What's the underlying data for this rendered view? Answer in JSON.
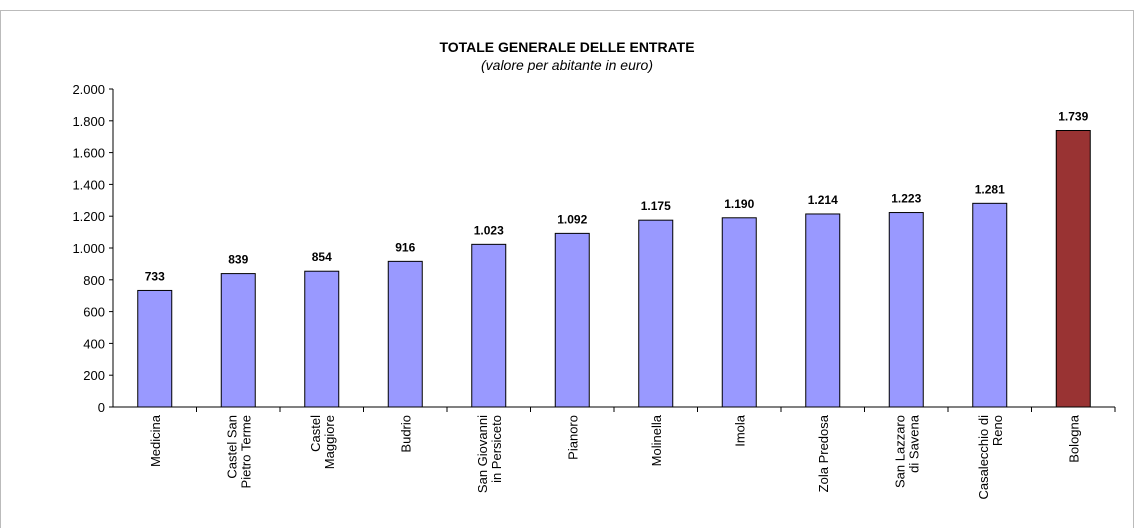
{
  "chart_data": {
    "type": "bar",
    "title": "TOTALE GENERALE DELLE ENTRATE",
    "subtitle": "(valore per abitante in  euro)",
    "categories": [
      "Medicina",
      "Castel San\nPietro Terme",
      "Castel\nMaggiore",
      "Budrio",
      "San Giovanni\nin Persiceto",
      "Pianoro",
      "Molinella",
      "Imola",
      "Zola Predosa",
      "San Lazzaro\ndi Savena",
      "Casalecchio di\nReno",
      "Bologna"
    ],
    "values": [
      733,
      839,
      854,
      916,
      1023,
      1092,
      1175,
      1190,
      1214,
      1223,
      1281,
      1739
    ],
    "value_labels": [
      "733",
      "839",
      "854",
      "916",
      "1.023",
      "1.092",
      "1.175",
      "1.190",
      "1.214",
      "1.223",
      "1.281",
      "1.739"
    ],
    "colors": [
      "#9999ff",
      "#9999ff",
      "#9999ff",
      "#9999ff",
      "#9999ff",
      "#9999ff",
      "#9999ff",
      "#9999ff",
      "#9999ff",
      "#9999ff",
      "#9999ff",
      "#993333"
    ],
    "ylim": [
      0,
      2000
    ],
    "yticks": [
      0,
      200,
      400,
      600,
      800,
      {
        "value": 1000,
        "label": "1.000"
      },
      {
        "value": 1200,
        "label": "1.200"
      },
      {
        "value": 1400,
        "label": "1.400"
      },
      {
        "value": 1600,
        "label": "1.600"
      },
      {
        "value": 1800,
        "label": "1.800"
      },
      {
        "value": 2000,
        "label": "2.000"
      }
    ],
    "grid": false
  }
}
